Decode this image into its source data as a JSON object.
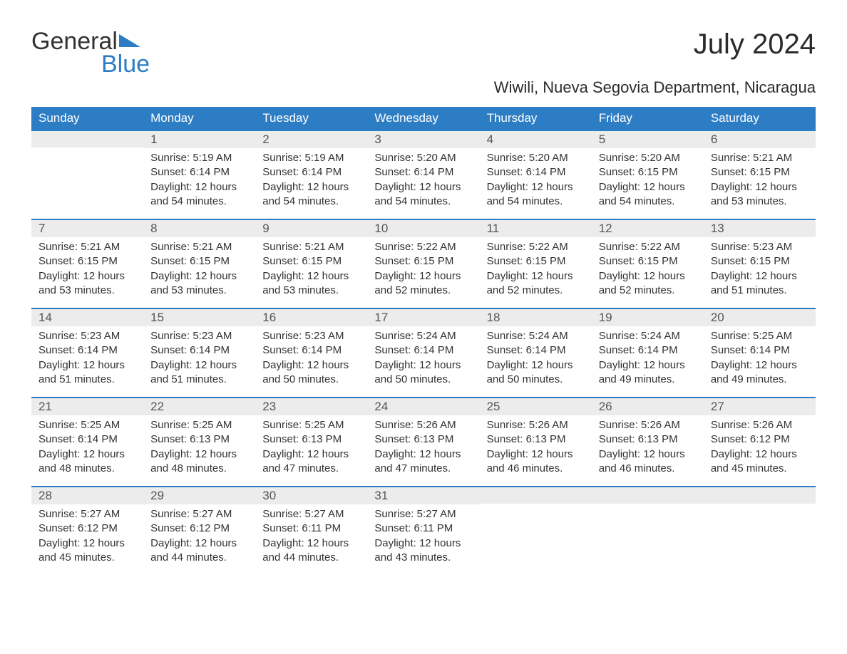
{
  "logo": {
    "text_general": "General",
    "text_blue": "Blue",
    "accent_color": "#2d7dc4"
  },
  "title": "July 2024",
  "location": "Wiwili, Nueva Segovia Department, Nicaragua",
  "header_bg": "#2d7dc4",
  "header_text_color": "#ffffff",
  "daynum_bg": "#ececec",
  "daynum_border": "#2d7dc4",
  "text_color": "#333333",
  "font_family": "Arial, Helvetica, sans-serif",
  "title_fontsize": 40,
  "location_fontsize": 22,
  "header_fontsize": 17,
  "body_fontsize": 15,
  "day_headers": [
    "Sunday",
    "Monday",
    "Tuesday",
    "Wednesday",
    "Thursday",
    "Friday",
    "Saturday"
  ],
  "weeks": [
    [
      null,
      {
        "n": "1",
        "sr": "5:19 AM",
        "ss": "6:14 PM",
        "dl": "12 hours and 54 minutes."
      },
      {
        "n": "2",
        "sr": "5:19 AM",
        "ss": "6:14 PM",
        "dl": "12 hours and 54 minutes."
      },
      {
        "n": "3",
        "sr": "5:20 AM",
        "ss": "6:14 PM",
        "dl": "12 hours and 54 minutes."
      },
      {
        "n": "4",
        "sr": "5:20 AM",
        "ss": "6:14 PM",
        "dl": "12 hours and 54 minutes."
      },
      {
        "n": "5",
        "sr": "5:20 AM",
        "ss": "6:15 PM",
        "dl": "12 hours and 54 minutes."
      },
      {
        "n": "6",
        "sr": "5:21 AM",
        "ss": "6:15 PM",
        "dl": "12 hours and 53 minutes."
      }
    ],
    [
      {
        "n": "7",
        "sr": "5:21 AM",
        "ss": "6:15 PM",
        "dl": "12 hours and 53 minutes."
      },
      {
        "n": "8",
        "sr": "5:21 AM",
        "ss": "6:15 PM",
        "dl": "12 hours and 53 minutes."
      },
      {
        "n": "9",
        "sr": "5:21 AM",
        "ss": "6:15 PM",
        "dl": "12 hours and 53 minutes."
      },
      {
        "n": "10",
        "sr": "5:22 AM",
        "ss": "6:15 PM",
        "dl": "12 hours and 52 minutes."
      },
      {
        "n": "11",
        "sr": "5:22 AM",
        "ss": "6:15 PM",
        "dl": "12 hours and 52 minutes."
      },
      {
        "n": "12",
        "sr": "5:22 AM",
        "ss": "6:15 PM",
        "dl": "12 hours and 52 minutes."
      },
      {
        "n": "13",
        "sr": "5:23 AM",
        "ss": "6:15 PM",
        "dl": "12 hours and 51 minutes."
      }
    ],
    [
      {
        "n": "14",
        "sr": "5:23 AM",
        "ss": "6:14 PM",
        "dl": "12 hours and 51 minutes."
      },
      {
        "n": "15",
        "sr": "5:23 AM",
        "ss": "6:14 PM",
        "dl": "12 hours and 51 minutes."
      },
      {
        "n": "16",
        "sr": "5:23 AM",
        "ss": "6:14 PM",
        "dl": "12 hours and 50 minutes."
      },
      {
        "n": "17",
        "sr": "5:24 AM",
        "ss": "6:14 PM",
        "dl": "12 hours and 50 minutes."
      },
      {
        "n": "18",
        "sr": "5:24 AM",
        "ss": "6:14 PM",
        "dl": "12 hours and 50 minutes."
      },
      {
        "n": "19",
        "sr": "5:24 AM",
        "ss": "6:14 PM",
        "dl": "12 hours and 49 minutes."
      },
      {
        "n": "20",
        "sr": "5:25 AM",
        "ss": "6:14 PM",
        "dl": "12 hours and 49 minutes."
      }
    ],
    [
      {
        "n": "21",
        "sr": "5:25 AM",
        "ss": "6:14 PM",
        "dl": "12 hours and 48 minutes."
      },
      {
        "n": "22",
        "sr": "5:25 AM",
        "ss": "6:13 PM",
        "dl": "12 hours and 48 minutes."
      },
      {
        "n": "23",
        "sr": "5:25 AM",
        "ss": "6:13 PM",
        "dl": "12 hours and 47 minutes."
      },
      {
        "n": "24",
        "sr": "5:26 AM",
        "ss": "6:13 PM",
        "dl": "12 hours and 47 minutes."
      },
      {
        "n": "25",
        "sr": "5:26 AM",
        "ss": "6:13 PM",
        "dl": "12 hours and 46 minutes."
      },
      {
        "n": "26",
        "sr": "5:26 AM",
        "ss": "6:13 PM",
        "dl": "12 hours and 46 minutes."
      },
      {
        "n": "27",
        "sr": "5:26 AM",
        "ss": "6:12 PM",
        "dl": "12 hours and 45 minutes."
      }
    ],
    [
      {
        "n": "28",
        "sr": "5:27 AM",
        "ss": "6:12 PM",
        "dl": "12 hours and 45 minutes."
      },
      {
        "n": "29",
        "sr": "5:27 AM",
        "ss": "6:12 PM",
        "dl": "12 hours and 44 minutes."
      },
      {
        "n": "30",
        "sr": "5:27 AM",
        "ss": "6:11 PM",
        "dl": "12 hours and 44 minutes."
      },
      {
        "n": "31",
        "sr": "5:27 AM",
        "ss": "6:11 PM",
        "dl": "12 hours and 43 minutes."
      },
      null,
      null,
      null
    ]
  ],
  "labels": {
    "sunrise": "Sunrise: ",
    "sunset": "Sunset: ",
    "daylight": "Daylight: "
  }
}
